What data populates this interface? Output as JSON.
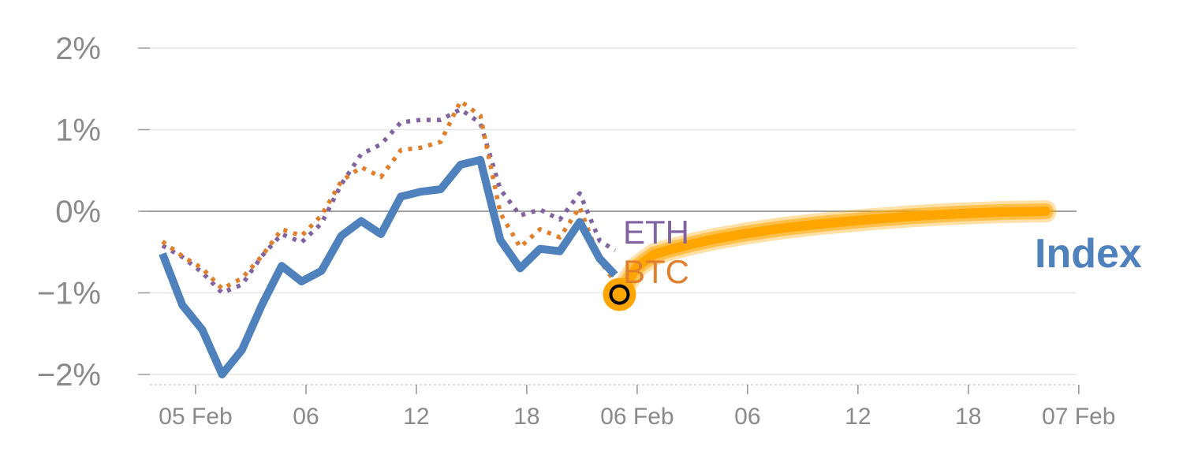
{
  "chart_data": {
    "type": "line",
    "title": "",
    "xlabel": "",
    "ylabel": "",
    "y_unit": "%",
    "ylim": [
      -2.1,
      2.0
    ],
    "xlim": [
      -2.0,
      82.8
    ],
    "grid": true,
    "y_ticks": [
      {
        "value": 2,
        "label": "2%"
      },
      {
        "value": 1,
        "label": "1%"
      },
      {
        "value": 0,
        "label": "0%"
      },
      {
        "value": -1,
        "label": "−1%"
      },
      {
        "value": -2,
        "label": "−2%"
      }
    ],
    "x_ticks": [
      {
        "value": 3,
        "label": "05 Feb"
      },
      {
        "value": 13,
        "label": "06"
      },
      {
        "value": 23,
        "label": "12"
      },
      {
        "value": 33,
        "label": "18"
      },
      {
        "value": 43,
        "label": "06 Feb"
      },
      {
        "value": 53,
        "label": "06"
      },
      {
        "value": 63,
        "label": "12"
      },
      {
        "value": 73,
        "label": "18"
      },
      {
        "value": 83,
        "label": "07 Feb"
      }
    ],
    "series": [
      {
        "name": "Index",
        "color": "#4f81bd",
        "style": "solid",
        "x": [
          0,
          1.8,
          3.6,
          5.4,
          7.2,
          9,
          10.8,
          12.6,
          14.4,
          16.2,
          18,
          19.8,
          21.6,
          23.4,
          25.2,
          27,
          28.8,
          30.6,
          32.4,
          34.2,
          36,
          37.8,
          39.6,
          41
        ],
        "y": [
          -0.52,
          -1.15,
          -1.45,
          -2.0,
          -1.7,
          -1.15,
          -0.67,
          -0.86,
          -0.73,
          -0.3,
          -0.12,
          -0.28,
          0.18,
          0.24,
          0.27,
          0.57,
          0.63,
          -0.35,
          -0.7,
          -0.46,
          -0.49,
          -0.13,
          -0.58,
          -0.78
        ]
      },
      {
        "name": "ETH",
        "color": "#8064a2",
        "style": "dotted",
        "x": [
          0,
          1.8,
          3.6,
          5.4,
          7.2,
          9,
          10.8,
          12.6,
          14.4,
          16.2,
          18,
          19.8,
          21.6,
          23.4,
          25.2,
          27,
          28.8,
          30.6,
          32.4,
          34.2,
          36,
          37.8,
          39.6,
          41
        ],
        "y": [
          -0.42,
          -0.56,
          -0.75,
          -1.0,
          -0.9,
          -0.55,
          -0.28,
          -0.38,
          -0.15,
          0.33,
          0.7,
          0.82,
          1.09,
          1.12,
          1.12,
          1.25,
          1.08,
          0.27,
          -0.05,
          0.02,
          -0.1,
          0.22,
          -0.36,
          -0.48
        ]
      },
      {
        "name": "BTC",
        "color": "#e07f2c",
        "style": "dotted",
        "x": [
          0,
          1.8,
          3.6,
          5.4,
          7.2,
          9,
          10.8,
          12.6,
          14.4,
          16.2,
          18,
          19.8,
          21.6,
          23.4,
          25.2,
          27,
          28.8,
          30.6,
          32.4,
          34.2,
          36,
          37.8,
          39.6,
          41,
          41.4
        ],
        "y": [
          -0.37,
          -0.55,
          -0.7,
          -0.95,
          -0.82,
          -0.55,
          -0.22,
          -0.3,
          -0.05,
          0.37,
          0.54,
          0.42,
          0.75,
          0.78,
          0.85,
          1.35,
          1.17,
          -0.02,
          -0.44,
          -0.22,
          -0.32,
          0.05,
          -0.6,
          -0.87,
          -1.02
        ]
      },
      {
        "name": "Index-projection",
        "color": "#ffa500",
        "style": "band",
        "x": [
          41.4,
          43,
          44.5,
          46,
          48,
          50,
          53,
          56,
          60,
          64,
          68,
          72,
          76,
          80
        ],
        "y": [
          -1.02,
          -0.68,
          -0.53,
          -0.47,
          -0.4,
          -0.34,
          -0.27,
          -0.21,
          -0.15,
          -0.1,
          -0.06,
          -0.03,
          -0.01,
          0.0
        ]
      }
    ],
    "marker": {
      "x": 41.4,
      "y": -1.02,
      "fill": "#ffa500",
      "ring": "#000000"
    },
    "labels": {
      "eth": "ETH",
      "btc": "BTC",
      "index": "Index"
    },
    "colors": {
      "grid": "#e6e6e6",
      "zero_line": "#808080",
      "axis": "#d0d0d0",
      "tick_text": "#8a8a8a"
    }
  }
}
